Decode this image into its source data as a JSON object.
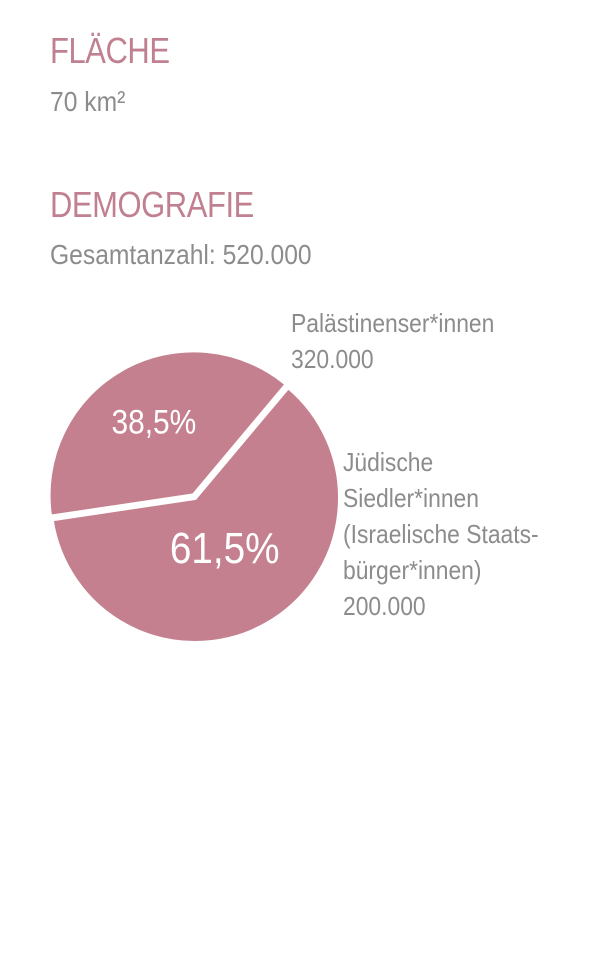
{
  "area": {
    "heading": "FLÄCHE",
    "value": "70 km²"
  },
  "demography": {
    "heading": "DEMOGRAFIE",
    "total": "Gesamtanzahl: 520.000"
  },
  "colors": {
    "accent": "#c08090",
    "slice": "#c4808f",
    "text_gray": "#8c8c8c",
    "separator": "#ffffff"
  },
  "chart_data": {
    "type": "pie",
    "title": "",
    "slices": [
      {
        "name": "Palästinenser*innen",
        "value": 320000,
        "percent": 61.5,
        "percent_label": "61,5%",
        "callout_lines": [
          "Palästinenser*innen",
          "320.000"
        ]
      },
      {
        "name": "Jüdische Siedler*innen (Israelische Staatsbürger*innen)",
        "value": 200000,
        "percent": 38.5,
        "percent_label": "38,5%",
        "callout_lines": [
          "Jüdische",
          "Siedler*innen",
          "(Israelische Staats-",
          "bürger*innen)",
          "200.000"
        ]
      }
    ],
    "legend": "none",
    "grid": false
  }
}
